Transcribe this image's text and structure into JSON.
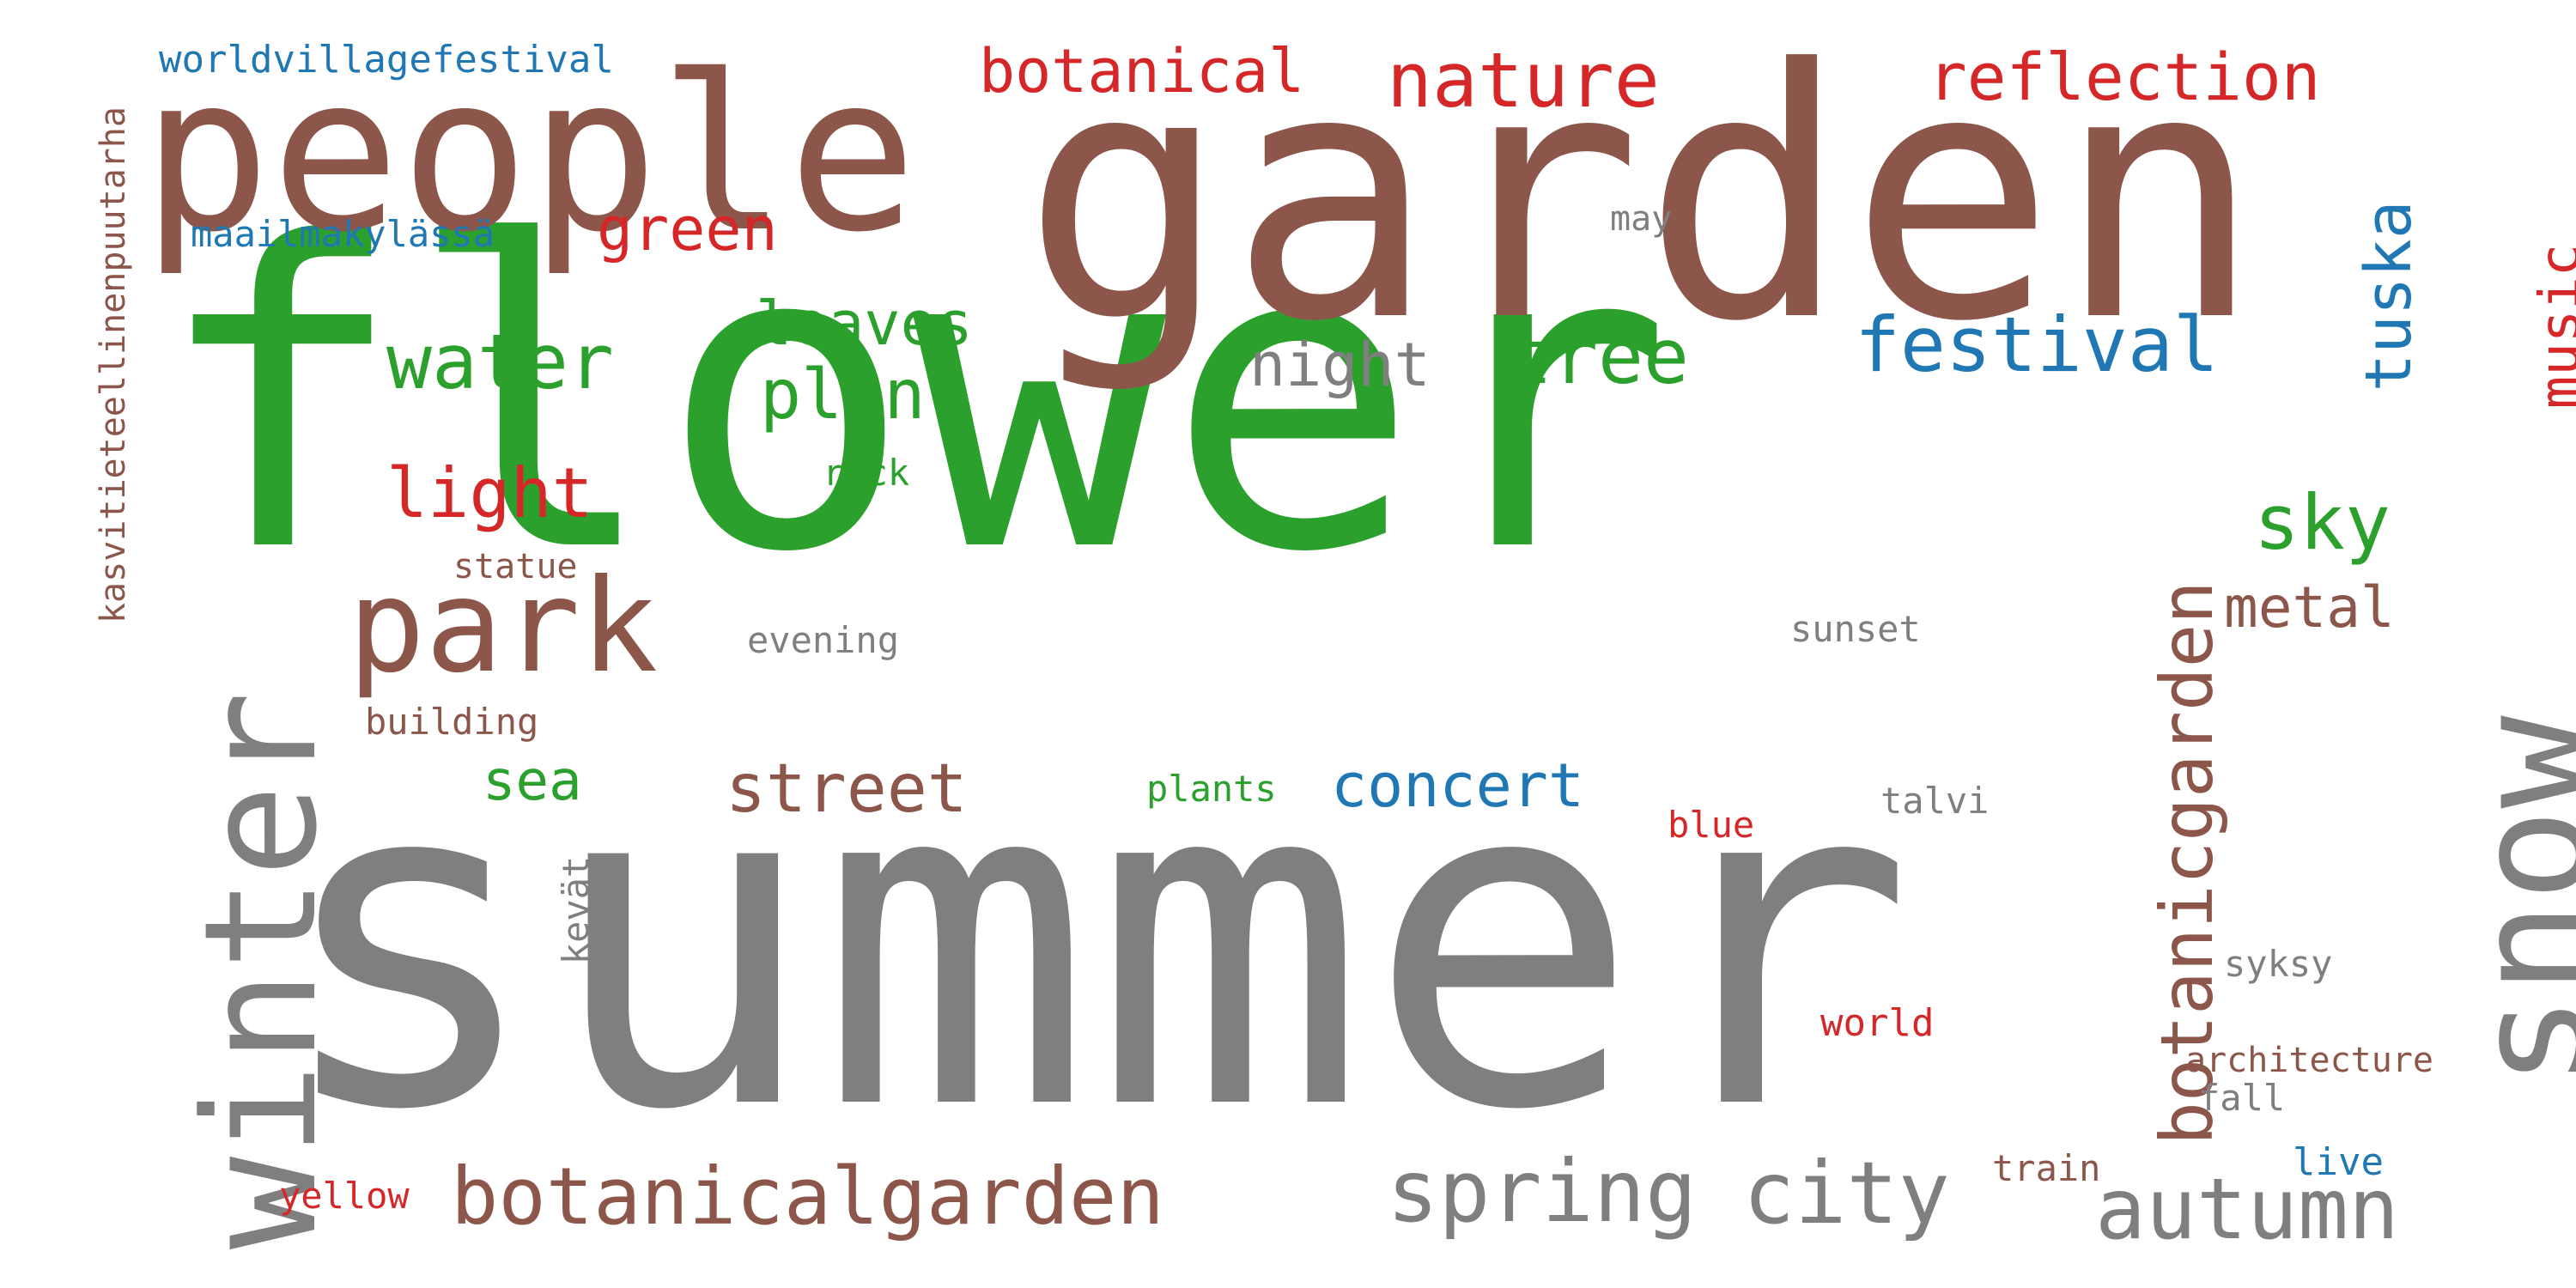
{
  "colors": {
    "green": "#2ca02c",
    "brown": "#8c564b",
    "gray": "#7f7f7f",
    "blue": "#1f77b4",
    "red": "#d62728"
  },
  "words": [
    {
      "text": "flower",
      "color": "green"
    },
    {
      "text": "summer",
      "color": "gray"
    },
    {
      "text": "garden",
      "color": "brown"
    },
    {
      "text": "people",
      "color": "brown"
    },
    {
      "text": "winter",
      "color": "gray"
    },
    {
      "text": "snow",
      "color": "gray"
    },
    {
      "text": "park",
      "color": "brown"
    },
    {
      "text": "botanicalgarden",
      "color": "brown"
    },
    {
      "text": "spring",
      "color": "gray"
    },
    {
      "text": "city",
      "color": "gray"
    },
    {
      "text": "autumn",
      "color": "gray"
    },
    {
      "text": "botanicgarden",
      "color": "brown"
    },
    {
      "text": "nature",
      "color": "red"
    },
    {
      "text": "water",
      "color": "green"
    },
    {
      "text": "tree",
      "color": "green"
    },
    {
      "text": "festival",
      "color": "blue"
    },
    {
      "text": "reflection",
      "color": "red"
    },
    {
      "text": "botanical",
      "color": "red"
    },
    {
      "text": "plant",
      "color": "green"
    },
    {
      "text": "tuska",
      "color": "blue"
    },
    {
      "text": "light",
      "color": "red"
    },
    {
      "text": "sky",
      "color": "green"
    },
    {
      "text": "street",
      "color": "brown"
    },
    {
      "text": "leaves",
      "color": "green"
    },
    {
      "text": "green",
      "color": "red"
    },
    {
      "text": "music",
      "color": "red"
    },
    {
      "text": "night",
      "color": "gray"
    },
    {
      "text": "concert",
      "color": "blue"
    },
    {
      "text": "metal",
      "color": "brown"
    },
    {
      "text": "sea",
      "color": "green"
    },
    {
      "text": "worldvillagefestival",
      "color": "blue"
    },
    {
      "text": "kasvitieteellinenpuutarha",
      "color": "brown"
    },
    {
      "text": "maailmakylässä",
      "color": "blue"
    },
    {
      "text": "may",
      "color": "gray"
    },
    {
      "text": "rock",
      "color": "green"
    },
    {
      "text": "statue",
      "color": "brown"
    },
    {
      "text": "evening",
      "color": "gray"
    },
    {
      "text": "sunset",
      "color": "gray"
    },
    {
      "text": "building",
      "color": "brown"
    },
    {
      "text": "plants",
      "color": "green"
    },
    {
      "text": "blue",
      "color": "red"
    },
    {
      "text": "talvi",
      "color": "gray"
    },
    {
      "text": "kevät",
      "color": "gray"
    },
    {
      "text": "syksy",
      "color": "gray"
    },
    {
      "text": "world",
      "color": "red"
    },
    {
      "text": "architecture",
      "color": "brown"
    },
    {
      "text": "fall",
      "color": "gray"
    },
    {
      "text": "live",
      "color": "blue"
    },
    {
      "text": "train",
      "color": "brown"
    },
    {
      "text": "yellow",
      "color": "red"
    }
  ]
}
